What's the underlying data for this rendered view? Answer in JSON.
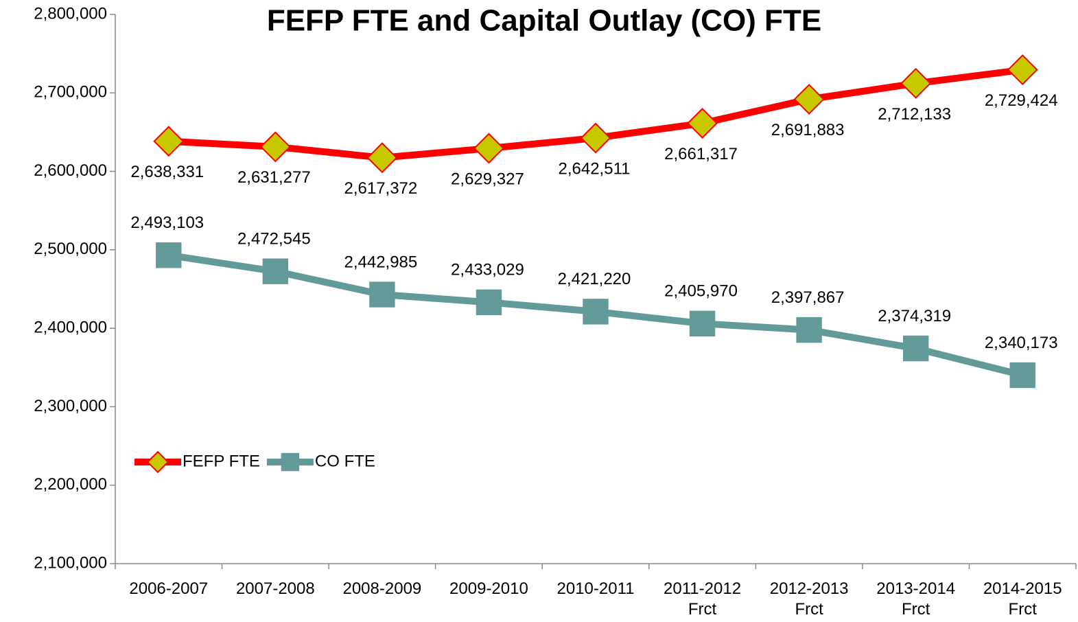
{
  "chart_data": {
    "type": "line",
    "title": "FEFP FTE and Capital Outlay (CO) FTE",
    "categories": [
      "2006-2007",
      "2007-2008",
      "2008-2009",
      "2009-2010",
      "2010-2011",
      "2011-2012\nFrct",
      "2012-2013\nFrct",
      "2013-2014\nFrct",
      "2014-2015\nFrct"
    ],
    "series": [
      {
        "name": "FEFP FTE",
        "color": "#ff0000",
        "marker": "diamond",
        "marker_color": "#c8c800",
        "label_side": "below",
        "values": [
          2638331,
          2631277,
          2617372,
          2629327,
          2642511,
          2661317,
          2691883,
          2712133,
          2729424
        ],
        "value_labels": [
          "2,638,331",
          "2,631,277",
          "2,617,372",
          "2,629,327",
          "2,642,511",
          "2,661,317",
          "2,691,883",
          "2,712,133",
          "2,729,424"
        ]
      },
      {
        "name": "CO FTE",
        "color": "#629a9a",
        "marker": "square",
        "marker_color": "#629a9a",
        "label_side": "above",
        "values": [
          2493103,
          2472545,
          2442985,
          2433029,
          2421220,
          2405970,
          2397867,
          2374319,
          2340173
        ],
        "value_labels": [
          "2,493,103",
          "2,472,545",
          "2,442,985",
          "2,433,029",
          "2,421,220",
          "2,405,970",
          "2,397,867",
          "2,374,319",
          "2,340,173"
        ]
      }
    ],
    "ylim": [
      2100000,
      2800000
    ],
    "yticks": [
      {
        "value": 2100000,
        "label": "2,100,000"
      },
      {
        "value": 2200000,
        "label": "2,200,000"
      },
      {
        "value": 2300000,
        "label": "2,300,000"
      },
      {
        "value": 2400000,
        "label": "2,400,000"
      },
      {
        "value": 2500000,
        "label": "2,500,000"
      },
      {
        "value": 2600000,
        "label": "2,600,000"
      },
      {
        "value": 2700000,
        "label": "2,700,000"
      },
      {
        "value": 2800000,
        "label": "2,800,000"
      }
    ],
    "grid": false,
    "legend": "lower left"
  }
}
